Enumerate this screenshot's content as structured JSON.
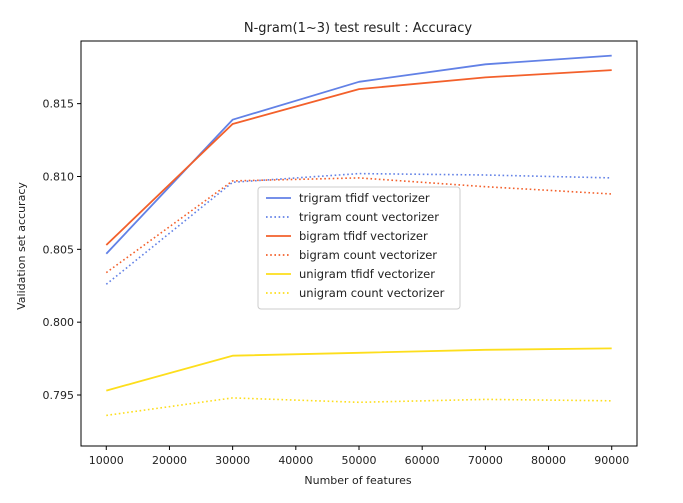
{
  "chart_data": {
    "type": "line",
    "title": "N-gram(1~3) test result : Accuracy",
    "xlabel": "Number of features",
    "ylabel": "Validation set accuracy",
    "xlim": [
      6000,
      94000
    ],
    "ylim": [
      0.7915,
      0.8193
    ],
    "x_ticks": [
      10000,
      20000,
      30000,
      40000,
      50000,
      60000,
      70000,
      80000,
      90000
    ],
    "y_ticks": [
      0.795,
      0.8,
      0.805,
      0.81,
      0.815
    ],
    "x_tick_labels": [
      "10000",
      "20000",
      "30000",
      "40000",
      "50000",
      "60000",
      "70000",
      "80000",
      "90000"
    ],
    "y_tick_labels": [
      "0.795",
      "0.800",
      "0.805",
      "0.810",
      "0.815"
    ],
    "grid": false,
    "legend_position": "center",
    "x": [
      10000,
      30000,
      50000,
      70000,
      90000
    ],
    "series": [
      {
        "name": "trigram tfidf vectorizer",
        "color": "#6281e6",
        "style": "solid",
        "values": [
          0.8047,
          0.8139,
          0.8165,
          0.8177,
          0.8183
        ]
      },
      {
        "name": "trigram count vectorizer",
        "color": "#6281e6",
        "style": "dotted",
        "values": [
          0.8026,
          0.8096,
          0.8102,
          0.8101,
          0.8099
        ]
      },
      {
        "name": "bigram tfidf vectorizer",
        "color": "#f3602b",
        "style": "solid",
        "values": [
          0.8053,
          0.8136,
          0.816,
          0.8168,
          0.8173
        ]
      },
      {
        "name": "bigram count vectorizer",
        "color": "#f3602b",
        "style": "dotted",
        "values": [
          0.8034,
          0.8097,
          0.8099,
          0.8093,
          0.8088
        ]
      },
      {
        "name": "unigram tfidf vectorizer",
        "color": "#fdde1c",
        "style": "solid",
        "values": [
          0.7953,
          0.7977,
          0.7979,
          0.7981,
          0.7982
        ]
      },
      {
        "name": "unigram count vectorizer",
        "color": "#fdde1c",
        "style": "dotted",
        "values": [
          0.7936,
          0.7948,
          0.7945,
          0.7947,
          0.7946
        ]
      }
    ]
  }
}
